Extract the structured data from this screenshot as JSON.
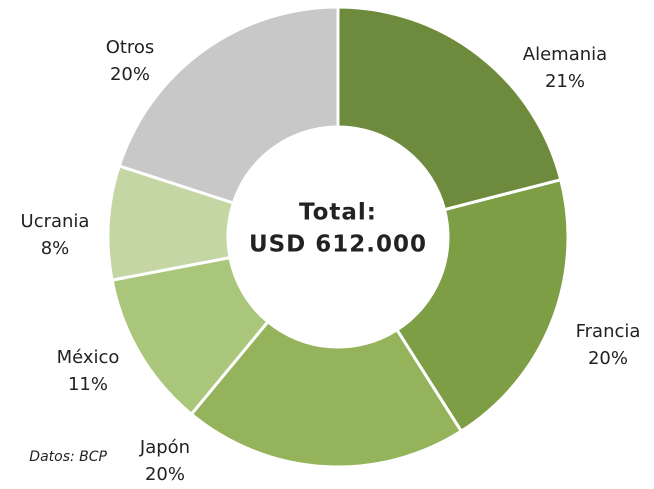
{
  "chart_data": {
    "type": "donut",
    "categories": [
      "Alemania",
      "Francia",
      "Japón",
      "México",
      "Ucrania",
      "Otros"
    ],
    "values": [
      21,
      20,
      20,
      11,
      8,
      20
    ],
    "value_labels": [
      "21%",
      "20%",
      "20%",
      "11%",
      "8%",
      "20%"
    ],
    "colors": [
      "#6e8b3d",
      "#7d9e45",
      "#94b35a",
      "#a9c67a",
      "#c3d6a4",
      "#c8c8c8"
    ],
    "center_text": [
      "Total:",
      "USD 612.000"
    ],
    "source": "Datos: BCP"
  }
}
